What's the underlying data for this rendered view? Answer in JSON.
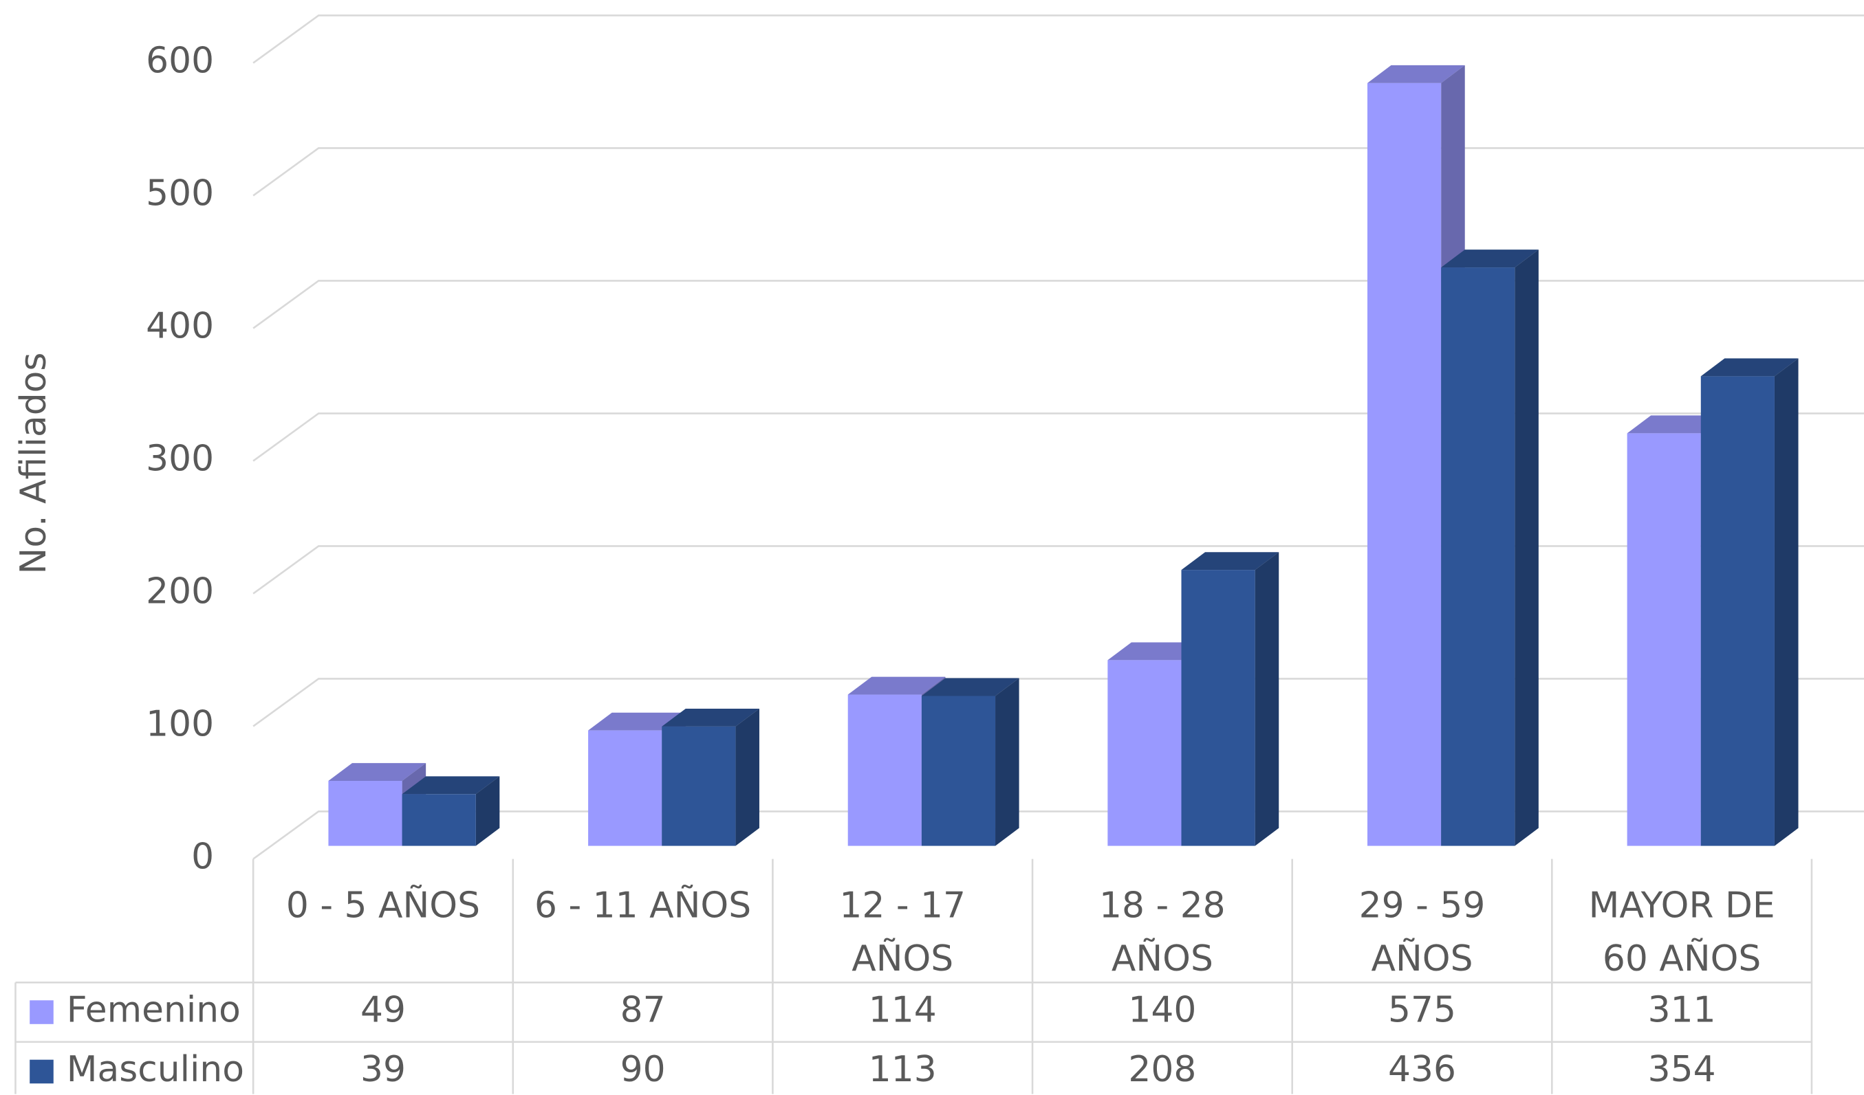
{
  "chart_data": {
    "type": "bar3d",
    "y_axis_label": "No. Afiliados",
    "categories": [
      "0 - 5 AÑOS",
      "6 - 11 AÑOS",
      "12 - 17 AÑOS",
      "18 - 28 AÑOS",
      "29 - 59 AÑOS",
      "MAYOR DE 60 AÑOS"
    ],
    "series": [
      {
        "name": "Femenino",
        "color": "#9999ff",
        "values": [
          49,
          87,
          114,
          140,
          575,
          311
        ]
      },
      {
        "name": "Masculino",
        "color": "#2e5597",
        "values": [
          39,
          90,
          113,
          208,
          436,
          354
        ]
      }
    ],
    "ylim": [
      0,
      600
    ],
    "yticks": [
      0,
      100,
      200,
      300,
      400,
      500,
      600
    ],
    "grid": true,
    "data_table": true
  }
}
